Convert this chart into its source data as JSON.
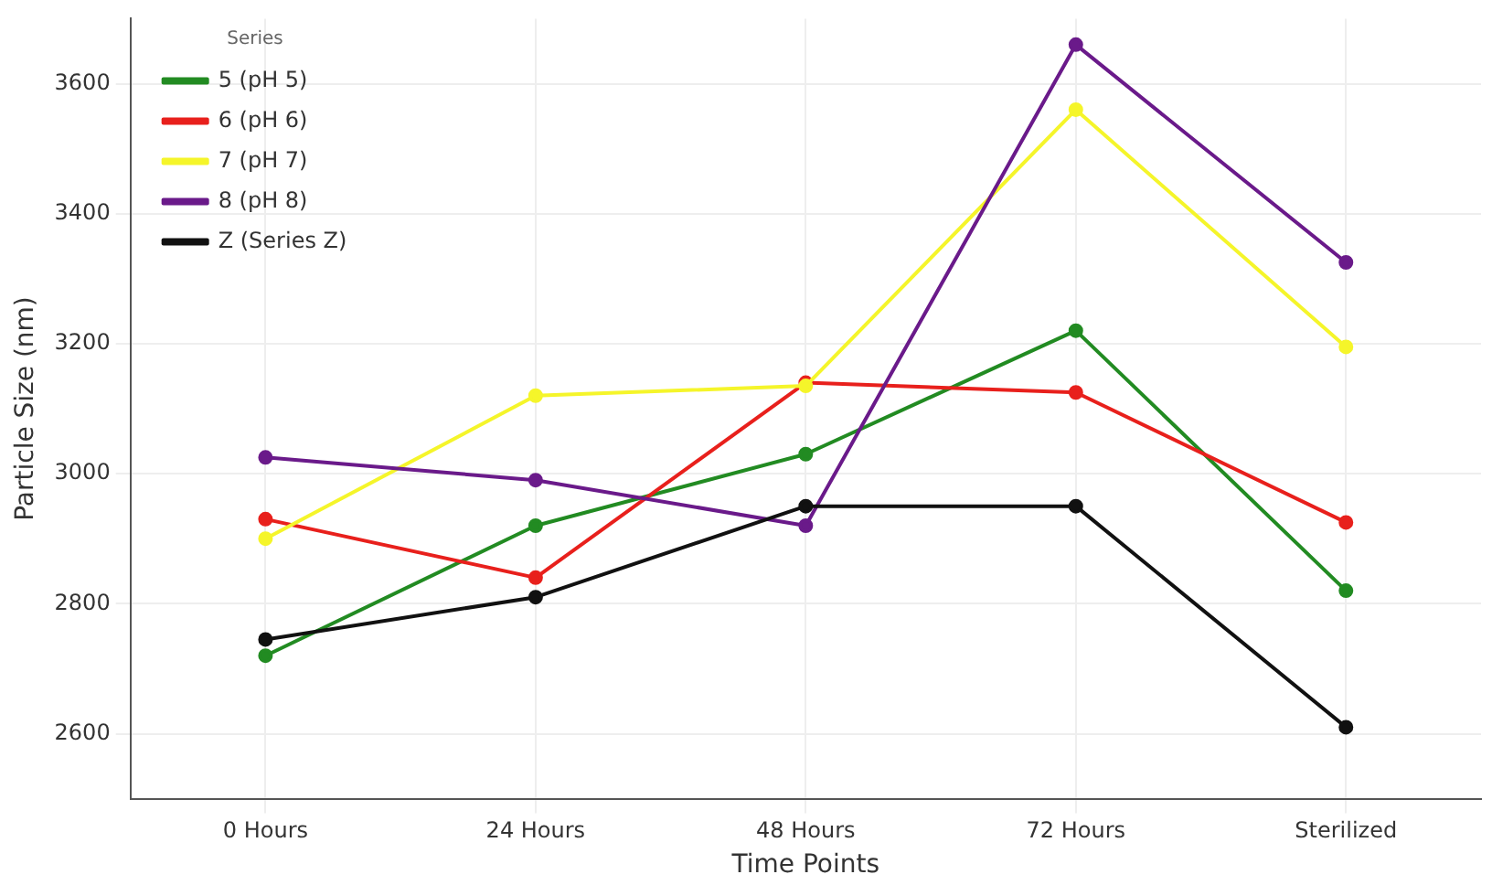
{
  "chart_data": {
    "type": "line",
    "xlabel": "Time Points",
    "ylabel": "Particle Size (nm)",
    "legend_title": "Series",
    "categories": [
      "0 Hours",
      "24 Hours",
      "48 Hours",
      "72 Hours",
      "Sterilized"
    ],
    "series": [
      {
        "name": "5 (pH 5)",
        "color": "#228b22",
        "values": [
          2720,
          2920,
          3030,
          3220,
          2820
        ]
      },
      {
        "name": "6 (pH 6)",
        "color": "#e8201c",
        "values": [
          2930,
          2840,
          3140,
          3125,
          2925
        ]
      },
      {
        "name": "7 (pH 7)",
        "color": "#f5f52a",
        "values": [
          2900,
          3120,
          3135,
          3560,
          3195
        ]
      },
      {
        "name": "8 (pH 8)",
        "color": "#6a1a8a",
        "values": [
          3025,
          2990,
          2920,
          3660,
          3325
        ]
      },
      {
        "name": "Z (Series Z)",
        "color": "#111111",
        "values": [
          2745,
          2810,
          2950,
          2950,
          2610
        ]
      }
    ],
    "ylim": [
      2500,
      3700
    ],
    "yticks": [
      2600,
      2800,
      3000,
      3200,
      3400,
      3600
    ],
    "grid": true,
    "legend": "top left",
    "marker": "circle",
    "line_style": "solid"
  }
}
